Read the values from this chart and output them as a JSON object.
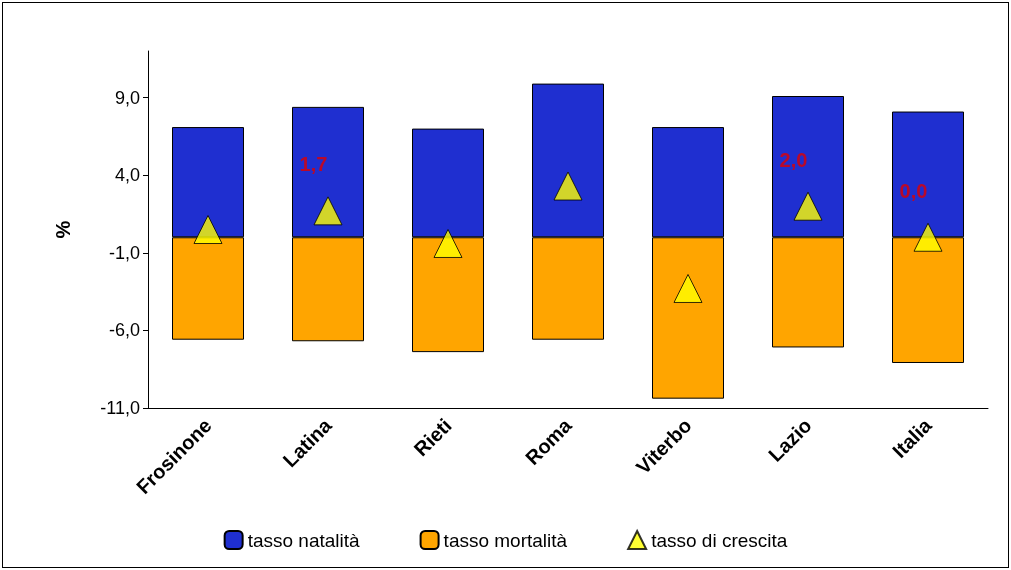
{
  "chart_data": {
    "type": "bar",
    "stacked": true,
    "ylabel": "%",
    "categories": [
      "Frosinone",
      "Latina",
      "Rieti",
      "Roma",
      "Viterbo",
      "Lazio",
      "Italia"
    ],
    "series": [
      {
        "name": "tasso natalità",
        "color": "#1f2fd0",
        "values": [
          7.1,
          8.4,
          7.0,
          9.9,
          7.1,
          9.1,
          8.1
        ]
      },
      {
        "name": "tasso mortalità",
        "color": "#ffa500",
        "values": [
          -6.6,
          -6.7,
          -7.4,
          -6.6,
          -10.4,
          -7.1,
          -8.1
        ]
      },
      {
        "name": "tasso di crescita",
        "type": "scatter",
        "marker": "triangle",
        "color": "#ffff00",
        "values": [
          0.5,
          1.7,
          -0.4,
          3.3,
          -3.3,
          2.0,
          0.0
        ],
        "value_labels": [
          null,
          "1,7",
          null,
          null,
          null,
          "2,0",
          "0,0"
        ]
      }
    ],
    "ylim": [
      -11,
      12
    ],
    "yticks": [
      {
        "value": -11,
        "label": "-11,0"
      },
      {
        "value": -6,
        "label": "-6,0"
      },
      {
        "value": -1,
        "label": "-1,0"
      },
      {
        "value": 4,
        "label": "4,0"
      },
      {
        "value": 9,
        "label": "9,0"
      }
    ],
    "legend": "bottom"
  }
}
